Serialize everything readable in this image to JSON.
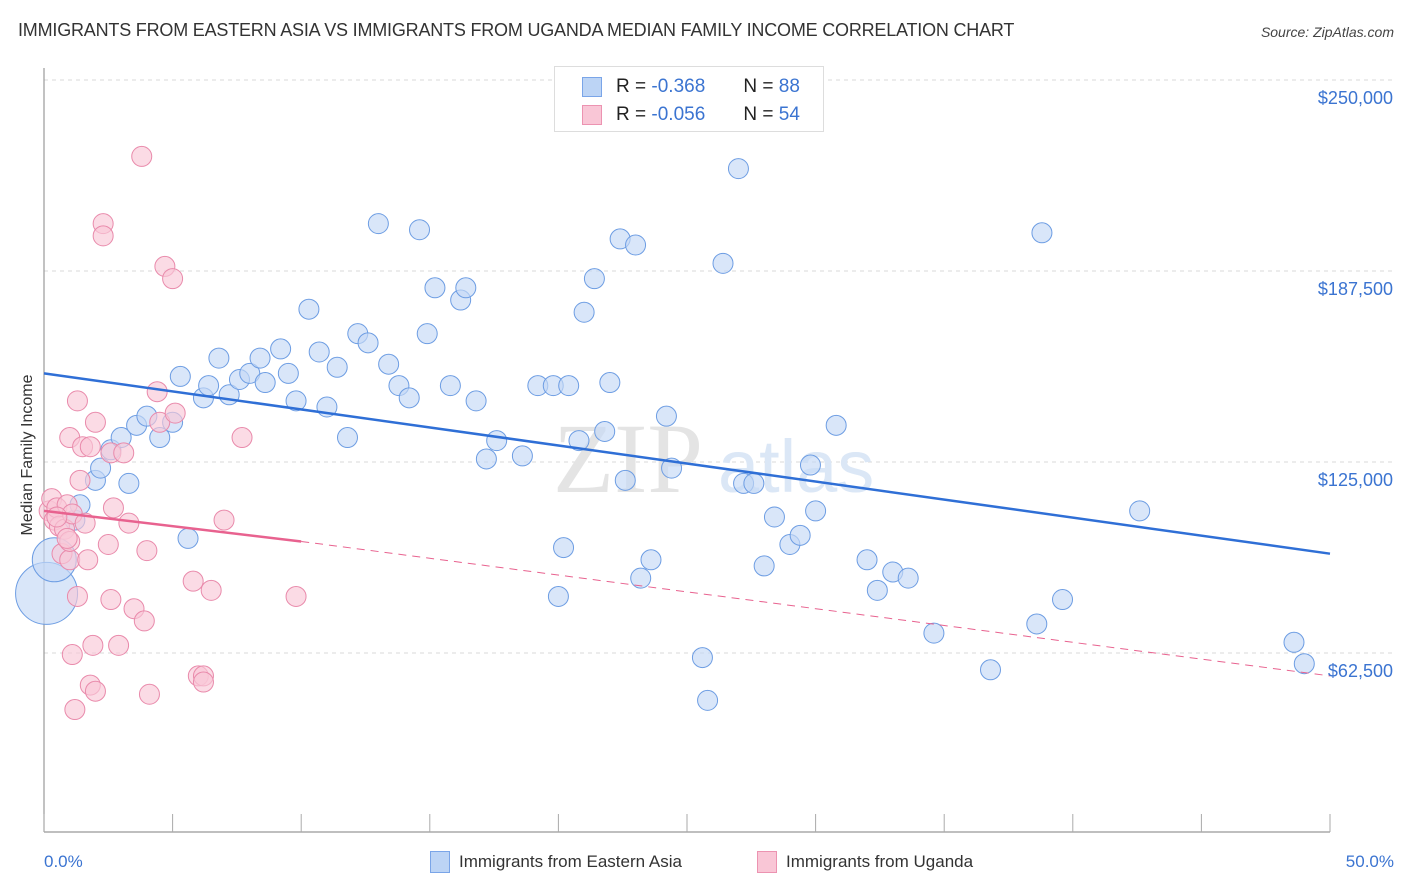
{
  "title": "IMMIGRANTS FROM EASTERN ASIA VS IMMIGRANTS FROM UGANDA MEDIAN FAMILY INCOME CORRELATION CHART",
  "source": "Source: ZipAtlas.com",
  "stats": [
    {
      "r_label": "R =",
      "r_value": "-0.368",
      "n_label": "N =",
      "n_value": "88",
      "color": "#bcd4f5"
    },
    {
      "r_label": "R =",
      "r_value": "-0.056",
      "n_label": "N =",
      "n_value": "54",
      "color": "#f9c6d6"
    }
  ],
  "chart_data": {
    "type": "scatter",
    "title": "IMMIGRANTS FROM EASTERN ASIA VS IMMIGRANTS FROM UGANDA MEDIAN FAMILY INCOME CORRELATION CHART",
    "xlabel": "",
    "ylabel": "Median Family Income",
    "xlim": [
      0,
      50
    ],
    "ylim": [
      4000,
      256500
    ],
    "x_tick_labels": [
      "0.0%",
      "50.0%"
    ],
    "y_ticks": [
      62500,
      125000,
      187500,
      250000
    ],
    "y_tick_labels": [
      "$62,500",
      "$125,000",
      "$187,500",
      "$250,000"
    ],
    "grid": true,
    "legend_position": "bottom-center",
    "watermark": "ZIPatlas",
    "series": [
      {
        "name": "Immigrants from Eastern Asia",
        "color": "#6d9de3",
        "fill": "#c5d9f6",
        "r": -0.368,
        "n": 88,
        "trend": {
          "x": [
            0,
            50
          ],
          "y": [
            154000,
            95000
          ]
        },
        "points": [
          [
            0.1,
            82000,
            3
          ],
          [
            0.4,
            93000,
            2
          ],
          [
            1.2,
            106000
          ],
          [
            1.4,
            111000
          ],
          [
            2.0,
            119000
          ],
          [
            2.2,
            123000
          ],
          [
            2.6,
            129000
          ],
          [
            3.0,
            133000
          ],
          [
            3.3,
            118000
          ],
          [
            3.6,
            137000
          ],
          [
            4.0,
            140000
          ],
          [
            4.5,
            133000
          ],
          [
            5.0,
            138000
          ],
          [
            5.3,
            153000
          ],
          [
            5.6,
            100000
          ],
          [
            6.2,
            146000
          ],
          [
            6.4,
            150000
          ],
          [
            6.8,
            159000
          ],
          [
            7.2,
            147000
          ],
          [
            7.6,
            152000
          ],
          [
            8.0,
            154000
          ],
          [
            8.4,
            159000
          ],
          [
            8.6,
            151000
          ],
          [
            9.2,
            162000
          ],
          [
            9.5,
            154000
          ],
          [
            9.8,
            145000
          ],
          [
            10.3,
            175000
          ],
          [
            10.7,
            161000
          ],
          [
            11.0,
            143000
          ],
          [
            11.4,
            156000
          ],
          [
            11.8,
            133000
          ],
          [
            12.2,
            167000
          ],
          [
            12.6,
            164000
          ],
          [
            13.0,
            203000
          ],
          [
            13.4,
            157000
          ],
          [
            13.8,
            150000
          ],
          [
            14.2,
            146000
          ],
          [
            14.6,
            201000
          ],
          [
            14.9,
            167000
          ],
          [
            15.2,
            182000
          ],
          [
            15.8,
            150000
          ],
          [
            16.2,
            178000
          ],
          [
            16.4,
            182000
          ],
          [
            16.8,
            145000
          ],
          [
            17.2,
            126000
          ],
          [
            17.6,
            132000
          ],
          [
            18.6,
            127000
          ],
          [
            19.2,
            150000
          ],
          [
            19.8,
            150000
          ],
          [
            20.0,
            81000
          ],
          [
            20.2,
            97000
          ],
          [
            20.4,
            150000
          ],
          [
            20.8,
            132000
          ],
          [
            21.0,
            174000
          ],
          [
            21.4,
            185000
          ],
          [
            21.8,
            135000
          ],
          [
            22.0,
            151000
          ],
          [
            22.4,
            198000
          ],
          [
            22.6,
            119000
          ],
          [
            23.0,
            196000
          ],
          [
            23.2,
            87000
          ],
          [
            23.6,
            93000
          ],
          [
            24.2,
            140000
          ],
          [
            24.4,
            123000
          ],
          [
            25.6,
            61000
          ],
          [
            25.8,
            47000
          ],
          [
            26.4,
            190000
          ],
          [
            27.0,
            221000
          ],
          [
            27.2,
            118000
          ],
          [
            27.6,
            118000
          ],
          [
            28.0,
            91000
          ],
          [
            28.4,
            107000
          ],
          [
            29.0,
            98000
          ],
          [
            29.4,
            101000
          ],
          [
            29.8,
            124000
          ],
          [
            30.0,
            109000
          ],
          [
            30.8,
            137000
          ],
          [
            32.0,
            93000
          ],
          [
            32.4,
            83000
          ],
          [
            33.0,
            89000
          ],
          [
            33.6,
            87000
          ],
          [
            34.6,
            69000
          ],
          [
            36.8,
            57000
          ],
          [
            38.6,
            72000
          ],
          [
            38.8,
            200000
          ],
          [
            39.6,
            80000
          ],
          [
            42.6,
            109000
          ],
          [
            48.6,
            66000
          ],
          [
            49.0,
            59000
          ]
        ]
      },
      {
        "name": "Immigrants from Uganda",
        "color": "#e98aab",
        "fill": "#f9c8d7",
        "r": -0.056,
        "n": 54,
        "trend": {
          "x": [
            0,
            10
          ],
          "y": [
            109000,
            99000
          ]
        },
        "trend_dashed": {
          "x": [
            10,
            50
          ],
          "y": [
            99000,
            55000
          ]
        },
        "points": [
          [
            0.2,
            109000
          ],
          [
            0.3,
            113000
          ],
          [
            0.4,
            106000
          ],
          [
            0.5,
            110000
          ],
          [
            0.6,
            104000
          ],
          [
            0.7,
            95000
          ],
          [
            0.8,
            103000
          ],
          [
            0.9,
            111000
          ],
          [
            1.0,
            93000
          ],
          [
            1.0,
            99000
          ],
          [
            1.1,
            108000
          ],
          [
            1.0,
            133000
          ],
          [
            1.1,
            62000
          ],
          [
            1.2,
            44000
          ],
          [
            1.3,
            81000
          ],
          [
            1.3,
            145000
          ],
          [
            1.4,
            119000
          ],
          [
            1.5,
            130000
          ],
          [
            1.6,
            105000
          ],
          [
            1.7,
            93000
          ],
          [
            1.8,
            130000
          ],
          [
            1.8,
            52000
          ],
          [
            1.9,
            65000
          ],
          [
            2.0,
            138000
          ],
          [
            2.0,
            50000
          ],
          [
            2.3,
            203000
          ],
          [
            2.3,
            199000
          ],
          [
            2.5,
            98000
          ],
          [
            2.6,
            128000
          ],
          [
            2.6,
            80000
          ],
          [
            2.7,
            110000
          ],
          [
            2.9,
            65000
          ],
          [
            3.1,
            128000
          ],
          [
            3.3,
            105000
          ],
          [
            3.5,
            77000
          ],
          [
            3.8,
            225000
          ],
          [
            3.9,
            73000
          ],
          [
            4.0,
            96000
          ],
          [
            4.1,
            49000
          ],
          [
            4.4,
            148000
          ],
          [
            4.5,
            138000
          ],
          [
            4.7,
            189000
          ],
          [
            5.0,
            185000
          ],
          [
            5.1,
            141000
          ],
          [
            5.8,
            86000
          ],
          [
            6.0,
            55000
          ],
          [
            6.2,
            55000
          ],
          [
            6.2,
            53000
          ],
          [
            6.5,
            83000
          ],
          [
            7.0,
            106000
          ],
          [
            7.7,
            133000
          ],
          [
            9.8,
            81000
          ],
          [
            0.5,
            107000
          ],
          [
            0.9,
            100000
          ]
        ]
      }
    ]
  },
  "legend": [
    {
      "label": "Immigrants from Eastern Asia"
    },
    {
      "label": "Immigrants from Uganda"
    }
  ]
}
